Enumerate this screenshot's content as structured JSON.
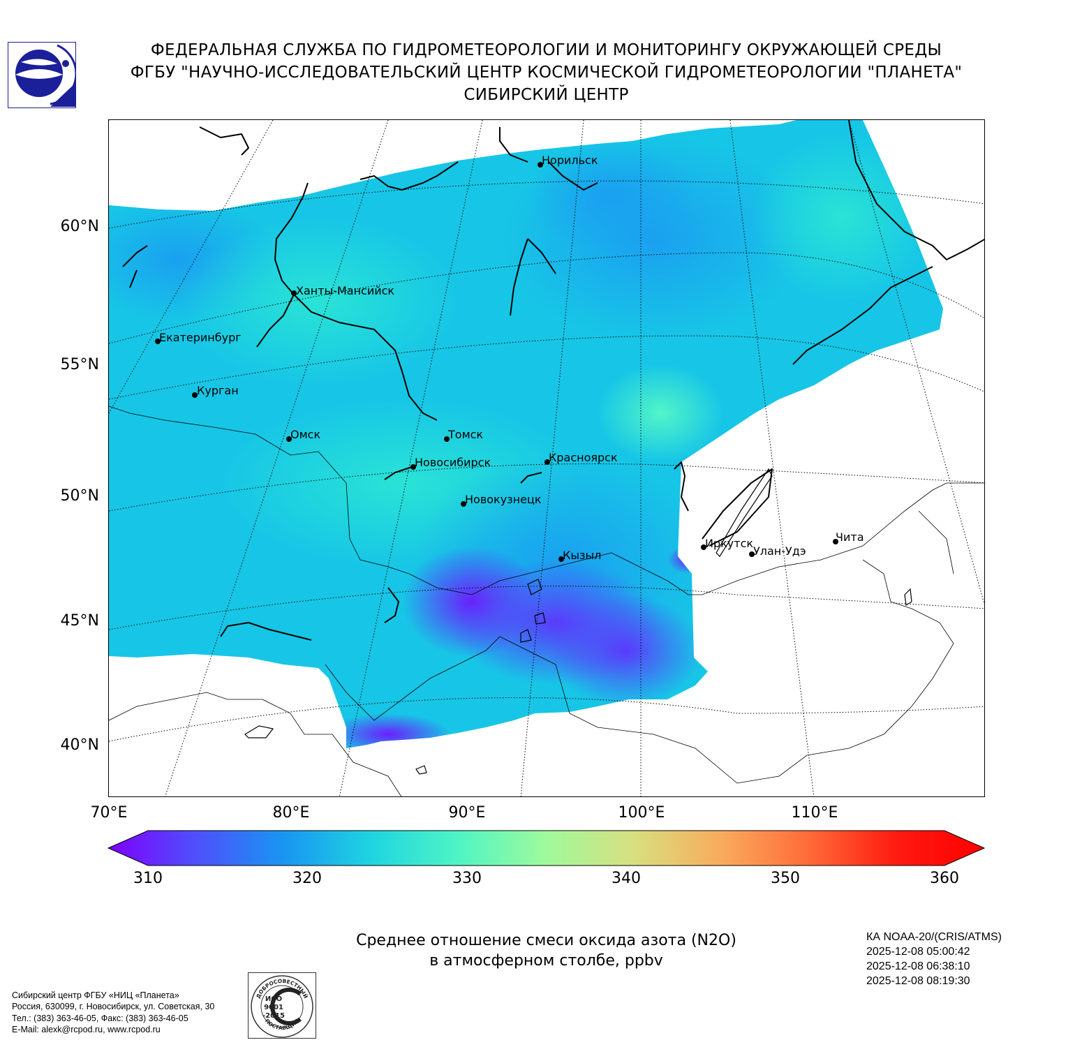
{
  "header": {
    "line1": "ФЕДЕРАЛЬНАЯ СЛУЖБА ПО ГИДРОМЕТЕОРОЛОГИИ И МОНИТОРИНГУ ОКРУЖАЮЩЕЙ СРЕДЫ",
    "line2": "ФГБУ \"НАУЧНО-ИССЛЕДОВАТЕЛЬСКИЙ ЦЕНТР КОСМИЧЕСКОЙ ГИДРОМЕТЕОРОЛОГИИ \"ПЛАНЕТА\"",
    "line3": "СИБИРСКИЙ ЦЕНТР"
  },
  "map": {
    "lat_labels": [
      "60°N",
      "55°N",
      "50°N",
      "45°N",
      "40°N"
    ],
    "lon_labels": [
      "70°E",
      "80°E",
      "90°E",
      "100°E",
      "110°E"
    ],
    "cities": [
      {
        "name": "Норильск"
      },
      {
        "name": "Ханты-Мансийск"
      },
      {
        "name": "Екатеринбург"
      },
      {
        "name": "Курган"
      },
      {
        "name": "Омск"
      },
      {
        "name": "Томск"
      },
      {
        "name": "Новосибирск"
      },
      {
        "name": "Красноярск"
      },
      {
        "name": "Новокузнецк"
      },
      {
        "name": "Кызыл"
      },
      {
        "name": "Иркутск"
      },
      {
        "name": "Улан-Удэ"
      },
      {
        "name": "Чита"
      }
    ]
  },
  "colorbar": {
    "ticks": [
      "310",
      "320",
      "330",
      "340",
      "350",
      "360"
    ],
    "min": 310,
    "max": 360,
    "colors": [
      "#7f00ff",
      "#4f4ffb",
      "#1996f3",
      "#1fd4e0",
      "#4ff5c4",
      "#9ffa9c",
      "#d8df7f",
      "#f9ab5d",
      "#ff6a38",
      "#ff1a10",
      "#ff0000"
    ]
  },
  "title": {
    "line1": "Среднее отношение смеси оксида азота (N2O)",
    "line2": "в атмосферном столбе, ppbv"
  },
  "meta": {
    "satellite": "КА NOAA-20/(CRIS/ATMS)",
    "times": [
      "2025-12-08 05:00:42",
      "2025-12-08 06:38:10",
      "2025-12-08 08:19:30"
    ]
  },
  "contacts": {
    "line1": "Сибирский центр ФГБУ «НИЦ «Планета»",
    "line2": "Россия, 630099, г. Новосибирск, ул. Советская, 30",
    "line3": "Тел.: (383) 363-46-05, Факс: (383) 363-46-05",
    "line4": "E-Mail: alexk@rcpod.ru, www.rcpod.ru"
  },
  "iso_badge": {
    "top": "ДОБРОСОВЕСТНЫЙ",
    "mid1": "ИСО",
    "mid2": "9001",
    "mid3": "-2015",
    "bottom": "ПОСТАВЩИК"
  }
}
